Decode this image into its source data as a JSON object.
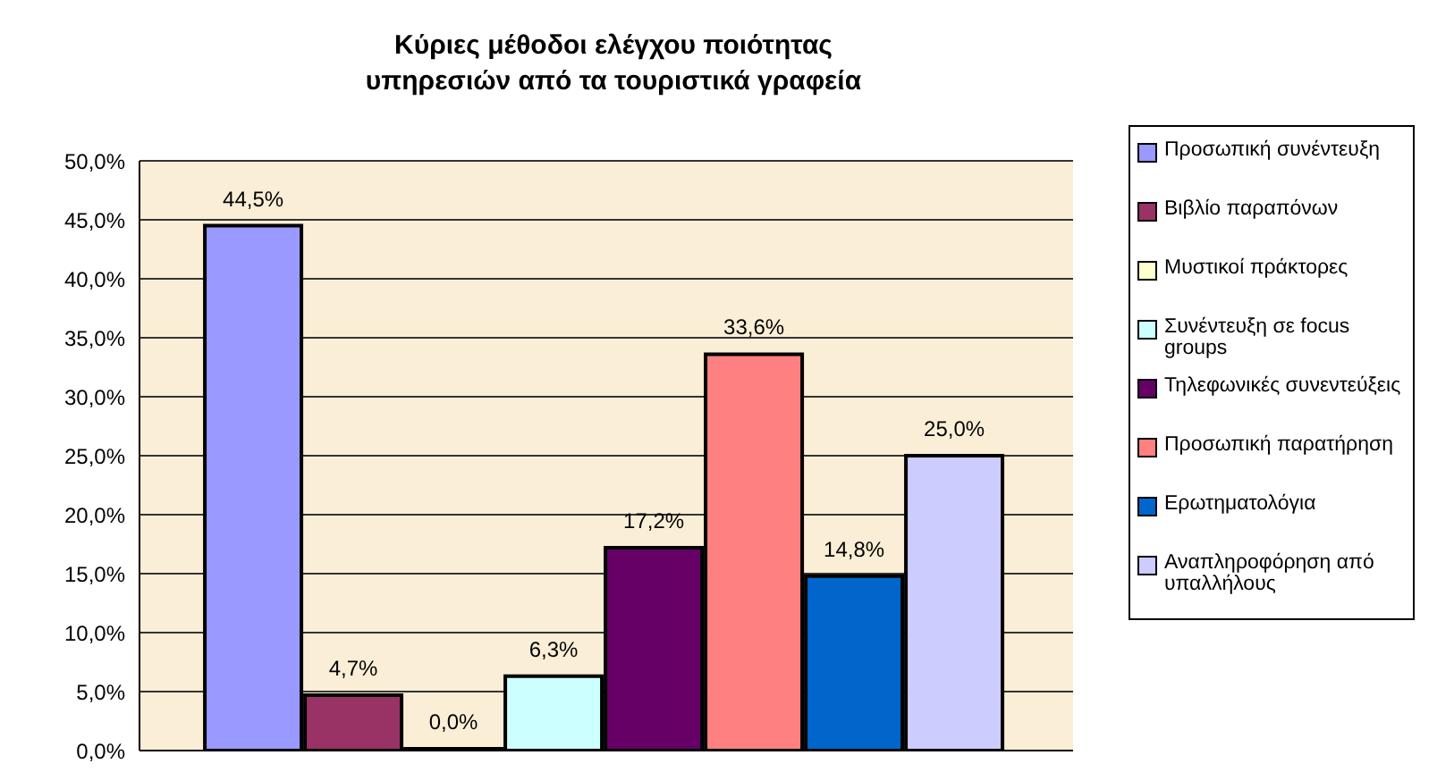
{
  "chart_data": {
    "type": "bar",
    "title": "Κύριες μέθοδοι ελέγχου ποιότητας υπηρεσιών από τα τουριστικά γραφεία",
    "categories": [
      null
    ],
    "series": [
      {
        "name": "Προσωπική συνέντευξη",
        "color": "#9999ff",
        "values": [
          44.5
        ],
        "value_labels": [
          "44,5%"
        ]
      },
      {
        "name": "Βιβλίο παραπόνων",
        "color": "#993366",
        "values": [
          4.7
        ],
        "value_labels": [
          "4,7%"
        ]
      },
      {
        "name": "Μυστικοί πράκτορες",
        "color": "#ffffcc",
        "values": [
          0.0
        ],
        "value_labels": [
          "0,0%"
        ]
      },
      {
        "name": "Συνέντευξη σε focus groups",
        "color": "#ccffff",
        "values": [
          6.3
        ],
        "value_labels": [
          "6,3%"
        ]
      },
      {
        "name": "Τηλεφωνικές συνεντεύξεις",
        "color": "#660066",
        "values": [
          17.2
        ],
        "value_labels": [
          "17,2%"
        ]
      },
      {
        "name": "Προσωπική παρατήρηση",
        "color": "#ff8080",
        "values": [
          33.6
        ],
        "value_labels": [
          "33,6%"
        ]
      },
      {
        "name": "Ερωτηματολόγια",
        "color": "#0066cc",
        "values": [
          14.8
        ],
        "value_labels": [
          "14,8%"
        ]
      },
      {
        "name": "Αναπληροφόρηση από υπαλλήλους",
        "color": "#ccccff",
        "values": [
          25.0
        ],
        "value_labels": [
          "25,0%"
        ]
      }
    ],
    "ylim": [
      0,
      50
    ],
    "yticks": [
      {
        "value": 0,
        "label": "0,0%"
      },
      {
        "value": 5,
        "label": "5,0%"
      },
      {
        "value": 10,
        "label": "10,0%"
      },
      {
        "value": 15,
        "label": "15,0%"
      },
      {
        "value": 20,
        "label": "20,0%"
      },
      {
        "value": 25,
        "label": "25,0%"
      },
      {
        "value": 30,
        "label": "30,0%"
      },
      {
        "value": 35,
        "label": "35,0%"
      },
      {
        "value": 40,
        "label": "40,0%"
      },
      {
        "value": 45,
        "label": "45,0%"
      },
      {
        "value": 50,
        "label": "50,0%"
      }
    ],
    "grid": "y",
    "legend": "right"
  }
}
